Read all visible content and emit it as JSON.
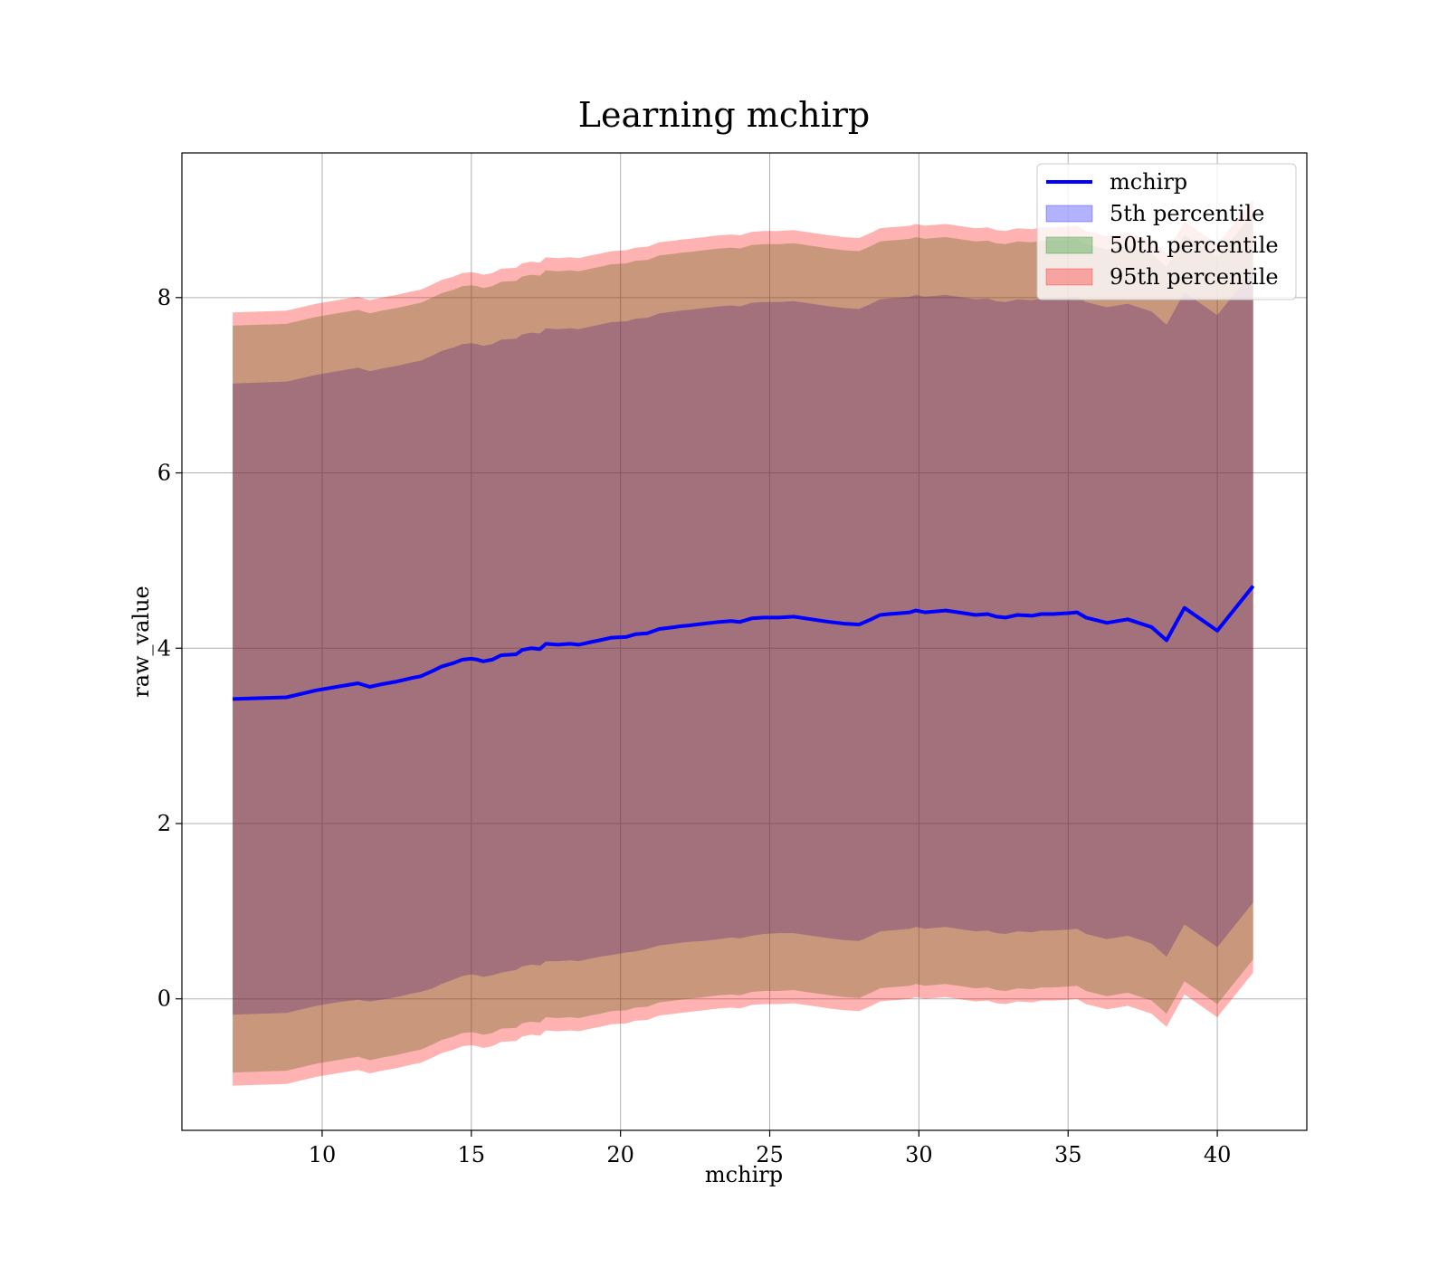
{
  "chart_data": {
    "type": "area",
    "title": "Learning mchirp",
    "xlabel": "mchirp",
    "ylabel": "raw_value",
    "xlim": [
      5.3,
      43
    ],
    "ylim": [
      -1.5,
      9.65
    ],
    "xticks": [
      10,
      15,
      20,
      25,
      30,
      35,
      40
    ],
    "yticks": [
      0,
      2,
      4,
      6,
      8
    ],
    "grid": true,
    "legend_position": "top-right",
    "colors": {
      "line": "#0000ff",
      "p5": "#0000ff",
      "p50": "#008000",
      "p95": "#ff0000"
    },
    "series": [
      {
        "name": "mchirp",
        "kind": "line"
      },
      {
        "name": "5th percentile",
        "kind": "band"
      },
      {
        "name": "50th percentile",
        "kind": "band"
      },
      {
        "name": "95th percentile",
        "kind": "band"
      }
    ],
    "x": [
      7.0,
      8.8,
      9.8,
      10.5,
      11.2,
      11.6,
      12.0,
      12.5,
      13.0,
      13.3,
      13.7,
      14.0,
      14.4,
      14.7,
      15.0,
      15.2,
      15.4,
      15.7,
      16.0,
      16.5,
      16.7,
      17.0,
      17.3,
      17.5,
      17.9,
      18.3,
      18.6,
      19.0,
      19.3,
      19.7,
      20.2,
      20.5,
      20.9,
      21.3,
      21.8,
      22.0,
      22.3,
      22.8,
      23.3,
      23.7,
      24.0,
      24.4,
      24.8,
      25.3,
      25.8,
      26.2,
      26.6,
      27.0,
      27.5,
      28.0,
      28.4,
      28.7,
      29.0,
      29.4,
      29.7,
      29.9,
      30.2,
      30.9,
      31.5,
      31.9,
      32.3,
      32.6,
      32.9,
      33.3,
      33.8,
      34.1,
      34.5,
      35.0,
      35.3,
      35.6,
      36.3,
      37.0,
      37.8,
      38.3,
      38.9,
      40.0,
      41.2
    ],
    "mean": [
      3.42,
      3.44,
      3.52,
      3.56,
      3.6,
      3.56,
      3.59,
      3.62,
      3.66,
      3.68,
      3.74,
      3.79,
      3.83,
      3.87,
      3.88,
      3.87,
      3.85,
      3.87,
      3.92,
      3.93,
      3.98,
      4.0,
      3.99,
      4.05,
      4.04,
      4.05,
      4.04,
      4.07,
      4.09,
      4.12,
      4.13,
      4.16,
      4.17,
      4.22,
      4.24,
      4.25,
      4.26,
      4.28,
      4.3,
      4.31,
      4.3,
      4.34,
      4.35,
      4.35,
      4.36,
      4.34,
      4.32,
      4.3,
      4.28,
      4.27,
      4.33,
      4.38,
      4.39,
      4.4,
      4.41,
      4.43,
      4.41,
      4.43,
      4.4,
      4.38,
      4.39,
      4.36,
      4.35,
      4.38,
      4.37,
      4.39,
      4.39,
      4.4,
      4.41,
      4.35,
      4.29,
      4.33,
      4.24,
      4.09,
      4.46,
      4.2,
      4.71
    ],
    "p5_lower": [
      -0.18,
      -0.16,
      -0.08,
      -0.04,
      -0.01,
      -0.03,
      -0.01,
      0.02,
      0.06,
      0.08,
      0.12,
      0.17,
      0.22,
      0.26,
      0.28,
      0.27,
      0.25,
      0.27,
      0.3,
      0.33,
      0.37,
      0.39,
      0.38,
      0.43,
      0.43,
      0.44,
      0.43,
      0.46,
      0.48,
      0.5,
      0.53,
      0.54,
      0.57,
      0.61,
      0.63,
      0.64,
      0.65,
      0.66,
      0.68,
      0.7,
      0.69,
      0.72,
      0.74,
      0.75,
      0.75,
      0.73,
      0.71,
      0.69,
      0.67,
      0.66,
      0.72,
      0.77,
      0.78,
      0.79,
      0.8,
      0.82,
      0.8,
      0.82,
      0.79,
      0.77,
      0.78,
      0.75,
      0.74,
      0.77,
      0.76,
      0.78,
      0.78,
      0.79,
      0.8,
      0.74,
      0.68,
      0.72,
      0.63,
      0.48,
      0.85,
      0.59,
      1.1
    ],
    "p5_upper": [
      7.02,
      7.04,
      7.12,
      7.16,
      7.2,
      7.16,
      7.19,
      7.22,
      7.26,
      7.28,
      7.34,
      7.39,
      7.43,
      7.47,
      7.48,
      7.47,
      7.45,
      7.47,
      7.52,
      7.53,
      7.58,
      7.6,
      7.59,
      7.65,
      7.64,
      7.65,
      7.64,
      7.67,
      7.69,
      7.72,
      7.73,
      7.76,
      7.77,
      7.82,
      7.84,
      7.85,
      7.86,
      7.88,
      7.9,
      7.91,
      7.9,
      7.94,
      7.95,
      7.95,
      7.96,
      7.94,
      7.92,
      7.9,
      7.88,
      7.87,
      7.93,
      7.98,
      7.99,
      8.0,
      8.01,
      8.03,
      8.01,
      8.03,
      8.0,
      7.98,
      7.99,
      7.96,
      7.95,
      7.98,
      7.97,
      7.99,
      7.99,
      8.0,
      8.01,
      7.95,
      7.89,
      7.93,
      7.84,
      7.69,
      8.06,
      7.8,
      8.31
    ],
    "p50_lower": [
      -0.84,
      -0.82,
      -0.74,
      -0.7,
      -0.66,
      -0.7,
      -0.67,
      -0.64,
      -0.6,
      -0.58,
      -0.52,
      -0.47,
      -0.43,
      -0.39,
      -0.38,
      -0.39,
      -0.41,
      -0.39,
      -0.34,
      -0.33,
      -0.28,
      -0.26,
      -0.27,
      -0.21,
      -0.22,
      -0.21,
      -0.22,
      -0.19,
      -0.17,
      -0.14,
      -0.13,
      -0.1,
      -0.09,
      -0.04,
      -0.02,
      -0.01,
      0.0,
      0.02,
      0.04,
      0.05,
      0.04,
      0.08,
      0.09,
      0.09,
      0.1,
      0.08,
      0.06,
      0.04,
      0.02,
      0.01,
      0.07,
      0.12,
      0.13,
      0.14,
      0.15,
      0.17,
      0.15,
      0.17,
      0.14,
      0.12,
      0.13,
      0.1,
      0.09,
      0.12,
      0.11,
      0.13,
      0.13,
      0.14,
      0.15,
      0.09,
      0.03,
      0.07,
      -0.02,
      -0.17,
      0.2,
      -0.06,
      0.45
    ],
    "p50_upper": [
      7.68,
      7.7,
      7.78,
      7.82,
      7.86,
      7.82,
      7.85,
      7.88,
      7.92,
      7.94,
      8.0,
      8.05,
      8.09,
      8.13,
      8.14,
      8.13,
      8.11,
      8.13,
      8.18,
      8.19,
      8.24,
      8.26,
      8.25,
      8.31,
      8.3,
      8.31,
      8.3,
      8.33,
      8.35,
      8.38,
      8.39,
      8.42,
      8.43,
      8.48,
      8.5,
      8.51,
      8.52,
      8.54,
      8.56,
      8.57,
      8.56,
      8.6,
      8.61,
      8.61,
      8.62,
      8.6,
      8.58,
      8.56,
      8.54,
      8.53,
      8.59,
      8.64,
      8.65,
      8.66,
      8.67,
      8.69,
      8.67,
      8.69,
      8.66,
      8.64,
      8.65,
      8.62,
      8.61,
      8.64,
      8.63,
      8.65,
      8.65,
      8.66,
      8.67,
      8.61,
      8.55,
      8.59,
      8.5,
      8.35,
      8.72,
      8.46,
      8.97
    ],
    "p95_lower": [
      -0.99,
      -0.97,
      -0.89,
      -0.85,
      -0.81,
      -0.85,
      -0.82,
      -0.79,
      -0.75,
      -0.73,
      -0.67,
      -0.62,
      -0.58,
      -0.54,
      -0.53,
      -0.54,
      -0.56,
      -0.54,
      -0.49,
      -0.48,
      -0.43,
      -0.41,
      -0.42,
      -0.36,
      -0.37,
      -0.36,
      -0.37,
      -0.34,
      -0.32,
      -0.29,
      -0.28,
      -0.25,
      -0.24,
      -0.19,
      -0.17,
      -0.16,
      -0.15,
      -0.13,
      -0.11,
      -0.1,
      -0.11,
      -0.07,
      -0.06,
      -0.06,
      -0.05,
      -0.07,
      -0.09,
      -0.11,
      -0.13,
      -0.14,
      -0.08,
      -0.03,
      -0.02,
      -0.01,
      0.0,
      0.02,
      0.0,
      0.02,
      -0.01,
      -0.03,
      -0.02,
      -0.05,
      -0.06,
      -0.03,
      -0.04,
      -0.02,
      -0.02,
      -0.01,
      0.0,
      -0.06,
      -0.12,
      -0.08,
      -0.17,
      -0.32,
      0.05,
      -0.21,
      0.3
    ],
    "p95_upper": [
      7.83,
      7.85,
      7.93,
      7.97,
      8.01,
      7.97,
      8.0,
      8.03,
      8.07,
      8.09,
      8.15,
      8.2,
      8.24,
      8.28,
      8.29,
      8.28,
      8.26,
      8.28,
      8.33,
      8.34,
      8.39,
      8.41,
      8.4,
      8.46,
      8.45,
      8.46,
      8.45,
      8.48,
      8.5,
      8.53,
      8.54,
      8.57,
      8.58,
      8.63,
      8.65,
      8.66,
      8.67,
      8.69,
      8.71,
      8.72,
      8.71,
      8.75,
      8.76,
      8.76,
      8.77,
      8.75,
      8.73,
      8.71,
      8.69,
      8.68,
      8.74,
      8.79,
      8.8,
      8.81,
      8.82,
      8.84,
      8.82,
      8.84,
      8.81,
      8.79,
      8.8,
      8.77,
      8.76,
      8.79,
      8.78,
      8.8,
      8.8,
      8.81,
      8.82,
      8.76,
      8.7,
      8.74,
      8.65,
      8.5,
      8.87,
      8.61,
      9.12
    ]
  }
}
